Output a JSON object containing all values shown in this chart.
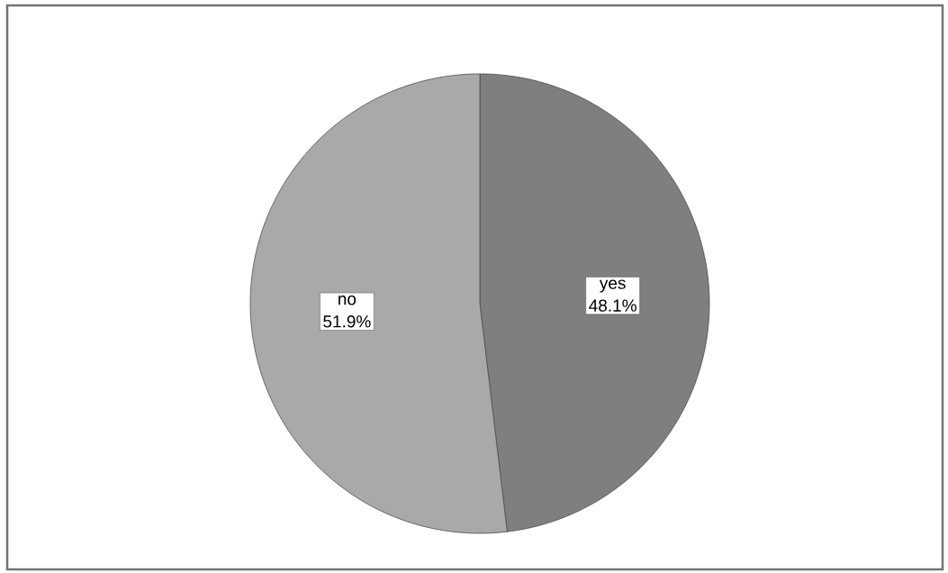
{
  "chart_data": {
    "type": "pie",
    "categories": [
      "yes",
      "no"
    ],
    "values": [
      48.1,
      51.9
    ],
    "colors": [
      "#7f7f7f",
      "#a9a9a9"
    ],
    "value_labels": [
      "48.1%",
      "51.9%"
    ]
  }
}
